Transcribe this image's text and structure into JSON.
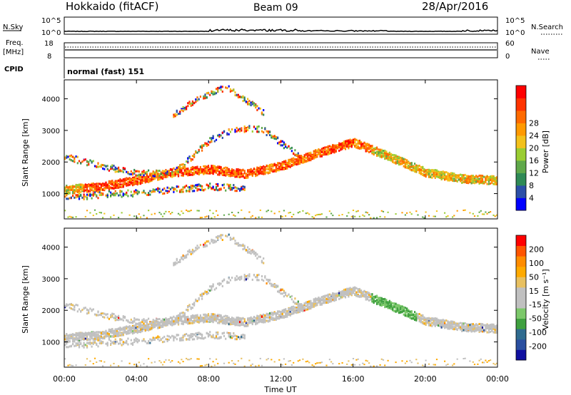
{
  "header": {
    "station": "Hokkaido (fitACF)",
    "beam": "Beam 09",
    "date": "28/Apr/2016"
  },
  "noise_panel": {
    "left_label": "N.Sky",
    "left_ticks": [
      "10^5",
      "10^0"
    ],
    "right_label": "N.Search",
    "right_ticks": [
      "10^5",
      "10^0"
    ]
  },
  "freq_panel": {
    "left_label_line1": "Freq.",
    "left_label_line2": "[MHz]",
    "left_ticks": [
      "18",
      "8"
    ],
    "right_label": "Nave",
    "right_ticks": [
      "60",
      "0"
    ]
  },
  "cpid": {
    "label": "CPID",
    "value": "normal (fast) 151"
  },
  "colors": {
    "power_scale": [
      "#0000ff",
      "#2c4fa8",
      "#2f8a56",
      "#5fa84a",
      "#9acd32",
      "#f3c11b",
      "#ff9900",
      "#ff6a00",
      "#ff3300",
      "#ff0000"
    ],
    "velocity_scale": [
      "#ff0000",
      "#ff5500",
      "#ff8c00",
      "#ffaa00",
      "#e8c060",
      "#c0c0c0",
      "#c0c0c0",
      "#7cc86a",
      "#3fa03f",
      "#2f6b8f",
      "#2a4fa0",
      "#1010a0"
    ]
  },
  "chart_data": [
    {
      "type": "heatmap",
      "title": "Power",
      "xlabel": "",
      "ylabel": "Slant Range [km]",
      "x_ticks": [
        "00:00",
        "04:00",
        "08:00",
        "12:00",
        "16:00",
        "20:00",
        "00:00"
      ],
      "y_ticks": [
        1000,
        2000,
        3000,
        4000
      ],
      "ylim": [
        200,
        4600
      ],
      "colorbar": {
        "label": "Power [dB]",
        "ticks": [
          4,
          8,
          12,
          16,
          20,
          24,
          28
        ]
      },
      "bands": [
        {
          "name": "main",
          "hours": [
            0,
            2,
            4,
            6,
            8,
            10,
            12,
            14,
            16,
            18,
            20,
            22,
            24
          ],
          "range_km": [
            1150,
            1250,
            1450,
            1700,
            1800,
            1650,
            1900,
            2300,
            2650,
            2200,
            1700,
            1500,
            1450
          ]
        },
        {
          "name": "upper",
          "hours": [
            0,
            2,
            4,
            6,
            8,
            9.5,
            11,
            13
          ],
          "range_km": [
            2200,
            1900,
            1700,
            1650,
            2700,
            3100,
            3050,
            2200
          ]
        },
        {
          "name": "lower",
          "hours": [
            0,
            2,
            4,
            6,
            8,
            10
          ],
          "range_km": [
            900,
            1000,
            1050,
            1150,
            1250,
            1200
          ]
        },
        {
          "name": "high",
          "hours": [
            6,
            7,
            8,
            9,
            10,
            11
          ],
          "range_km": [
            3500,
            3900,
            4200,
            4400,
            4000,
            3600
          ]
        }
      ]
    },
    {
      "type": "heatmap",
      "title": "Velocity",
      "xlabel": "Time UT",
      "ylabel": "Slant Range [km]",
      "x_ticks": [
        "00:00",
        "04:00",
        "08:00",
        "12:00",
        "16:00",
        "20:00",
        "00:00"
      ],
      "y_ticks": [
        1000,
        2000,
        3000,
        4000
      ],
      "ylim": [
        200,
        4600
      ],
      "colorbar": {
        "label": "Velocity [m s⁻¹]",
        "ticks": [
          200,
          100,
          50,
          15,
          -15,
          -50,
          -100,
          -200
        ]
      }
    }
  ]
}
